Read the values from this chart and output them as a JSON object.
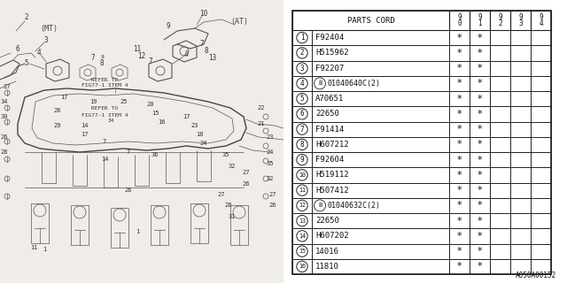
{
  "bg_color": "#ffffff",
  "table": {
    "rows": [
      {
        "num": 1,
        "code": "F92404",
        "special": false,
        "cols": [
          true,
          true,
          false,
          false,
          false
        ]
      },
      {
        "num": 2,
        "code": "H515962",
        "special": false,
        "cols": [
          true,
          true,
          false,
          false,
          false
        ]
      },
      {
        "num": 3,
        "code": "F92207",
        "special": false,
        "cols": [
          true,
          true,
          false,
          false,
          false
        ]
      },
      {
        "num": 4,
        "code": "B01040640C(2)",
        "special": true,
        "cols": [
          true,
          true,
          false,
          false,
          false
        ]
      },
      {
        "num": 5,
        "code": "A70651",
        "special": false,
        "cols": [
          true,
          true,
          false,
          false,
          false
        ]
      },
      {
        "num": 6,
        "code": "22650",
        "special": false,
        "cols": [
          true,
          true,
          false,
          false,
          false
        ]
      },
      {
        "num": 7,
        "code": "F91414",
        "special": false,
        "cols": [
          true,
          true,
          false,
          false,
          false
        ]
      },
      {
        "num": 8,
        "code": "H607212",
        "special": false,
        "cols": [
          true,
          true,
          false,
          false,
          false
        ]
      },
      {
        "num": 9,
        "code": "F92604",
        "special": false,
        "cols": [
          true,
          true,
          false,
          false,
          false
        ]
      },
      {
        "num": 10,
        "code": "H519112",
        "special": false,
        "cols": [
          true,
          true,
          false,
          false,
          false
        ]
      },
      {
        "num": 11,
        "code": "H507412",
        "special": false,
        "cols": [
          true,
          true,
          false,
          false,
          false
        ]
      },
      {
        "num": 12,
        "code": "B01040632C(2)",
        "special": true,
        "cols": [
          true,
          true,
          false,
          false,
          false
        ]
      },
      {
        "num": 13,
        "code": "22650",
        "special": false,
        "cols": [
          true,
          true,
          false,
          false,
          false
        ]
      },
      {
        "num": 14,
        "code": "H607202",
        "special": false,
        "cols": [
          true,
          true,
          false,
          false,
          false
        ]
      },
      {
        "num": 15,
        "code": "14016",
        "special": false,
        "cols": [
          true,
          true,
          false,
          false,
          false
        ]
      },
      {
        "num": 16,
        "code": "11810",
        "special": false,
        "cols": [
          true,
          true,
          false,
          false,
          false
        ]
      }
    ]
  },
  "footer_code": "A050A00152"
}
